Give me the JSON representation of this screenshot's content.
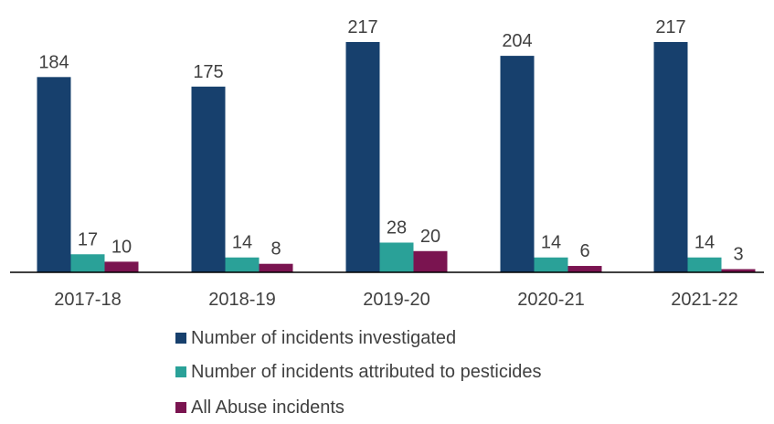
{
  "chart_data": {
    "type": "bar",
    "title": "",
    "xlabel": "",
    "ylabel": "",
    "categories": [
      "2017-18",
      "2018-19",
      "2019-20",
      "2020-21",
      "2021-22"
    ],
    "series": [
      {
        "name": "Number of incidents investigated",
        "color": "#17406d",
        "values": [
          184,
          175,
          217,
          204,
          217
        ]
      },
      {
        "name": "Number of incidents attributed to pesticides",
        "color": "#2aa198",
        "values": [
          17,
          14,
          28,
          14,
          14
        ]
      },
      {
        "name": "All Abuse incidents",
        "color": "#7a1450",
        "values": [
          10,
          8,
          20,
          6,
          3
        ]
      }
    ],
    "ylim": [
      0,
      217
    ],
    "grid": false,
    "legend_position": "bottom"
  }
}
